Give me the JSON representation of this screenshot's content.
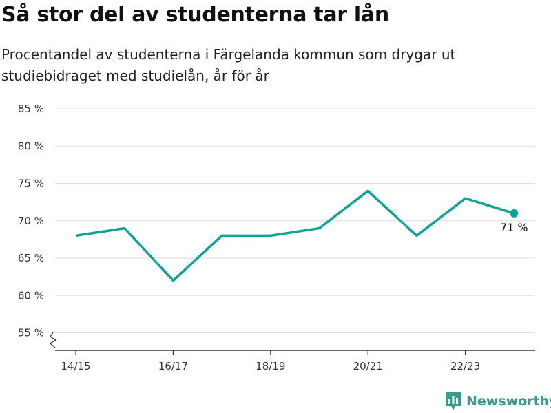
{
  "title": "Så stor del av studenterna tar lån",
  "subtitle": "Procentandel av studenterna i Färgelanda kommun som drygar ut studiebidraget med studielån, år för år",
  "brand": {
    "name": "Newsworthy",
    "icon": "bar-chart-logo-icon"
  },
  "colors": {
    "line": "#0fa398",
    "grid": "#dddddd",
    "axis": "#333333"
  },
  "chart_data": {
    "type": "line",
    "x": [
      "14/15",
      "15/16",
      "16/17",
      "17/18",
      "18/19",
      "19/20",
      "20/21",
      "21/22",
      "22/23",
      "23/24"
    ],
    "values": [
      68,
      69,
      62,
      68,
      68,
      69,
      74,
      68,
      73,
      71
    ],
    "x_tick_labels": [
      "14/15",
      "16/17",
      "18/19",
      "20/21",
      "22/23"
    ],
    "y_ticks": [
      55,
      60,
      65,
      70,
      75,
      80,
      85
    ],
    "y_tick_labels": [
      "55 %",
      "60 %",
      "65 %",
      "70 %",
      "75 %",
      "80 %",
      "85 %"
    ],
    "ylim": [
      52.5,
      85
    ],
    "axis_break": true,
    "grid": true,
    "last_point_label": "71 %"
  }
}
